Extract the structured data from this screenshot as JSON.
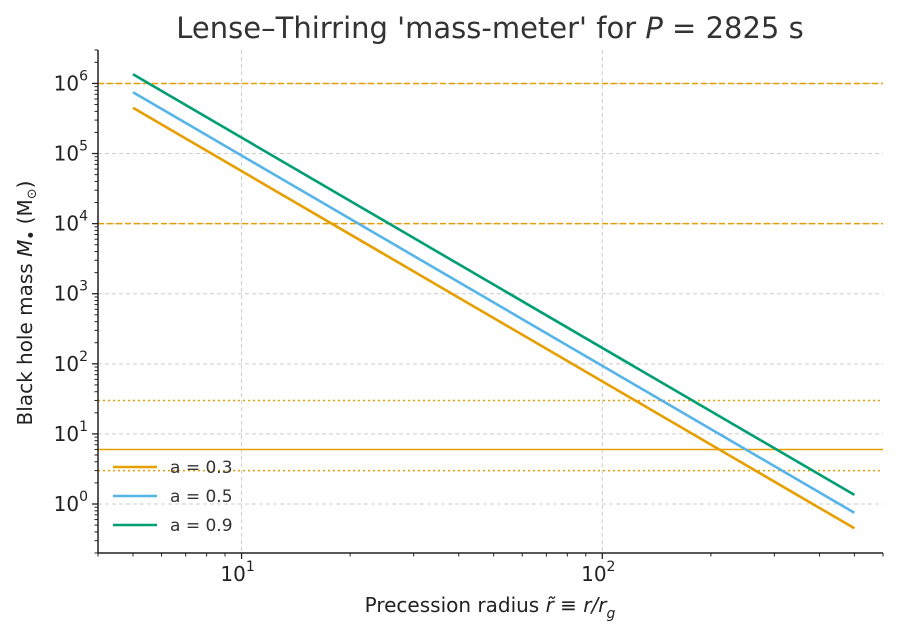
{
  "chart_data": {
    "type": "line",
    "title_prefix": "Lense–Thirring 'mass-meter' for ",
    "title_var": "P",
    "title_suffix": " = 2825 s",
    "xlabel_prefix": "Precession radius ",
    "xlabel_math": "r̃ ≡ r/r",
    "xlabel_sub": "g",
    "ylabel_prefix": "Black hole mass ",
    "ylabel_math": "M",
    "ylabel_bullet": "•",
    "ylabel_unit": " (M",
    "ylabel_unit_sym": "⊙",
    "ylabel_unit_close": ")",
    "xscale": "log",
    "yscale": "log",
    "xlim": [
      4.0,
      600
    ],
    "ylim": [
      0.2,
      3000000
    ],
    "x_ticks": [
      {
        "base": "10",
        "exp": "1",
        "value": 10
      },
      {
        "base": "10",
        "exp": "2",
        "value": 100
      }
    ],
    "y_ticks": [
      {
        "base": "10",
        "exp": "0",
        "value": 1
      },
      {
        "base": "10",
        "exp": "1",
        "value": 10
      },
      {
        "base": "10",
        "exp": "2",
        "value": 100
      },
      {
        "base": "10",
        "exp": "3",
        "value": 1000
      },
      {
        "base": "10",
        "exp": "4",
        "value": 10000
      },
      {
        "base": "10",
        "exp": "5",
        "value": 100000
      },
      {
        "base": "10",
        "exp": "6",
        "value": 1000000
      }
    ],
    "series": [
      {
        "name": "a = 0.3",
        "color": "#E69F00",
        "x": [
          5,
          500
        ],
        "y": [
          450000,
          0.45
        ]
      },
      {
        "name": "a = 0.5",
        "color": "#56B4E9",
        "x": [
          5,
          500
        ],
        "y": [
          750000,
          0.75
        ]
      },
      {
        "name": "a = 0.9",
        "color": "#009E73",
        "x": [
          5,
          500
        ],
        "y": [
          1350000,
          1.35
        ]
      }
    ],
    "reference_lines": [
      {
        "y": 1000000,
        "style": "dashed",
        "color": "#E69F00"
      },
      {
        "y": 10000,
        "style": "dashed",
        "color": "#E69F00"
      },
      {
        "y": 30,
        "style": "dotted",
        "color": "#E69F00"
      },
      {
        "y": 6,
        "style": "solid",
        "color": "#E69F00"
      },
      {
        "y": 3,
        "style": "dotted",
        "color": "#E69F00"
      }
    ],
    "grid": true,
    "legend_position": "lower-left"
  }
}
